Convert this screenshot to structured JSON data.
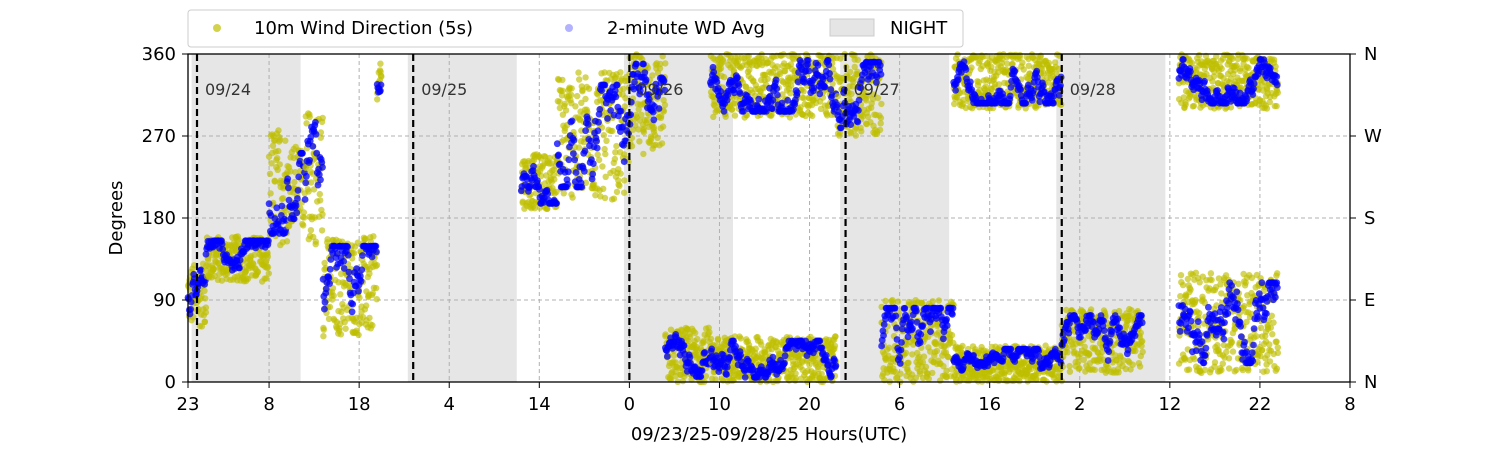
{
  "chart_data": {
    "type": "scatter",
    "xlabel": "09/23/25-09/28/25  Hours(UTC)",
    "ylabel": "Degrees",
    "x_range_hours": [
      0,
      105
    ],
    "ylim": [
      0,
      360
    ],
    "x_ticks": [
      {
        "h": 0,
        "label": "23"
      },
      {
        "h": 9,
        "label": "8"
      },
      {
        "h": 19,
        "label": "18"
      },
      {
        "h": 29,
        "label": "4"
      },
      {
        "h": 39,
        "label": "14"
      },
      {
        "h": 49,
        "label": "0"
      },
      {
        "h": 59,
        "label": "10"
      },
      {
        "h": 69,
        "label": "20"
      },
      {
        "h": 79,
        "label": "6"
      },
      {
        "h": 89,
        "label": "16"
      },
      {
        "h": 99,
        "label": "2"
      },
      {
        "h": 109,
        "label": "12"
      },
      {
        "h": 119,
        "label": "22"
      },
      {
        "h": 129,
        "label": "8"
      }
    ],
    "x_range_full": [
      0,
      129
    ],
    "y_ticks": [
      {
        "v": 0,
        "label": "0"
      },
      {
        "v": 90,
        "label": "90"
      },
      {
        "v": 180,
        "label": "180"
      },
      {
        "v": 270,
        "label": "270"
      },
      {
        "v": 360,
        "label": "360"
      }
    ],
    "y2_ticks": [
      {
        "v": 0,
        "label": "N"
      },
      {
        "v": 90,
        "label": "E"
      },
      {
        "v": 180,
        "label": "S"
      },
      {
        "v": 270,
        "label": "W"
      },
      {
        "v": 360,
        "label": "N"
      }
    ],
    "grid": true,
    "legend_position": "top",
    "night_spans_hours": [
      [
        0.4,
        12.5
      ],
      [
        24.4,
        36.5
      ],
      [
        48.4,
        60.5
      ],
      [
        72.4,
        84.5
      ],
      [
        96.4,
        108.5
      ]
    ],
    "day_markers": [
      {
        "h": 1,
        "label": "09/24"
      },
      {
        "h": 25,
        "label": "09/25"
      },
      {
        "h": 49,
        "label": "09/26"
      },
      {
        "h": 73,
        "label": "09/27"
      },
      {
        "h": 97,
        "label": "09/28"
      }
    ],
    "series": [
      {
        "name": "10m Wind Direction (5s)",
        "color": "#bfbf00"
      },
      {
        "name": "2-minute WD Avg",
        "color": "#0000ff"
      }
    ],
    "night_legend": "NIGHT",
    "segments": [
      {
        "h0": 0,
        "h1": 2,
        "lo": 60,
        "hi": 130
      },
      {
        "h0": 2,
        "h1": 9,
        "lo": 110,
        "hi": 160
      },
      {
        "h0": 9,
        "h1": 11,
        "lo": 150,
        "hi": 280
      },
      {
        "h0": 11,
        "h1": 13,
        "lo": 170,
        "hi": 260
      },
      {
        "h0": 13,
        "h1": 15,
        "lo": 150,
        "hi": 300
      },
      {
        "h0": 15,
        "h1": 21,
        "lo": 50,
        "hi": 160
      },
      {
        "h0": 21,
        "h1": 21.5,
        "lo": 310,
        "hi": 350
      },
      {
        "h0": 37,
        "h1": 41,
        "lo": 190,
        "hi": 250
      },
      {
        "h0": 41,
        "h1": 49,
        "lo": 200,
        "hi": 340
      },
      {
        "h0": 49,
        "h1": 53,
        "lo": 250,
        "hi": 360
      },
      {
        "h0": 53,
        "h1": 58,
        "lo": 0,
        "hi": 60
      },
      {
        "h0": 58,
        "h1": 72,
        "lo": 290,
        "hi": 360
      },
      {
        "h0": 58,
        "h1": 72,
        "lo": 0,
        "hi": 50
      },
      {
        "h0": 72,
        "h1": 77,
        "lo": 270,
        "hi": 360
      },
      {
        "h0": 77,
        "h1": 85,
        "lo": 0,
        "hi": 90
      },
      {
        "h0": 85,
        "h1": 97,
        "lo": 300,
        "hi": 360
      },
      {
        "h0": 85,
        "h1": 97,
        "lo": 0,
        "hi": 40
      },
      {
        "h0": 97,
        "h1": 106,
        "lo": 10,
        "hi": 80
      },
      {
        "h0": 110,
        "h1": 121,
        "lo": 10,
        "hi": 120
      },
      {
        "h0": 110,
        "h1": 121,
        "lo": 300,
        "hi": 360
      }
    ]
  }
}
